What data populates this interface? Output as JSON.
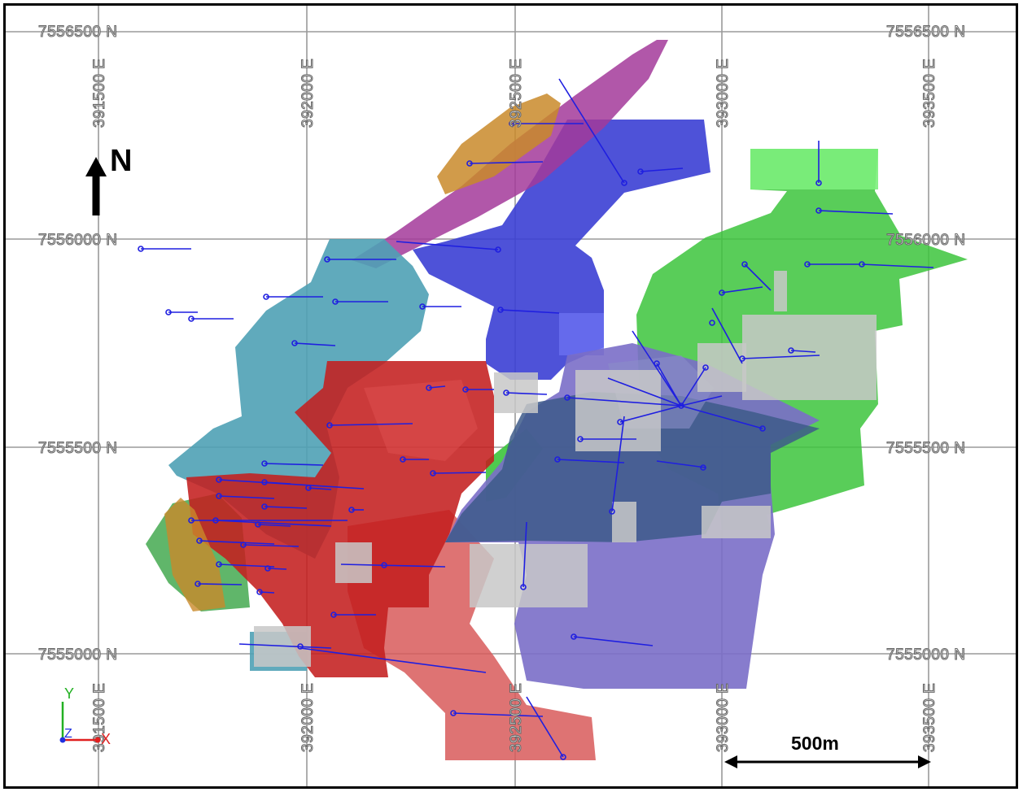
{
  "map": {
    "north_arrow_label": "N",
    "scale_bar": {
      "label": "500m",
      "length_m": 500
    },
    "axis_triad": {
      "y_label": "Y",
      "z_label": "Z",
      "x_label": "X"
    },
    "grid": {
      "northing_lines": [
        {
          "value": 7556500,
          "left_label": "7556500 N",
          "right_label": "7556500 N"
        },
        {
          "value": 7556000,
          "left_label": "7556000 N",
          "right_label": "7556000 N"
        },
        {
          "value": 7555500,
          "left_label": "7555500 N",
          "right_label": "7555500 N"
        },
        {
          "value": 7555000,
          "left_label": "7555000 N",
          "right_label": "7555000 N"
        }
      ],
      "easting_lines": [
        {
          "value": 391500,
          "top_label": "391500 E",
          "bottom_label": "391500 E"
        },
        {
          "value": 392000,
          "top_label": "392000 E",
          "bottom_label": "392000 E"
        },
        {
          "value": 392500,
          "top_label": "392500 E",
          "bottom_label": "392500 E"
        },
        {
          "value": 393000,
          "top_label": "393000 E",
          "bottom_label": "393000 E"
        },
        {
          "value": 393500,
          "top_label": "393500 E",
          "bottom_label": "393500 E"
        }
      ]
    },
    "colors": {
      "magenta_zone": "#a33a9a",
      "orange_zone": "#c98a2a",
      "blue_zone": "#3b3fd4",
      "cyan_zone": "#4fa1b5",
      "red_zone": "#c41f1f",
      "salmon_zone": "#d85a5a",
      "purple_zone": "#7a6ec8",
      "slate_zone": "#3d5a8a",
      "green_zone": "#3cc43c",
      "grey_blocks": "#c8c8c8",
      "drillholes": "#1f1fe0"
    }
  }
}
